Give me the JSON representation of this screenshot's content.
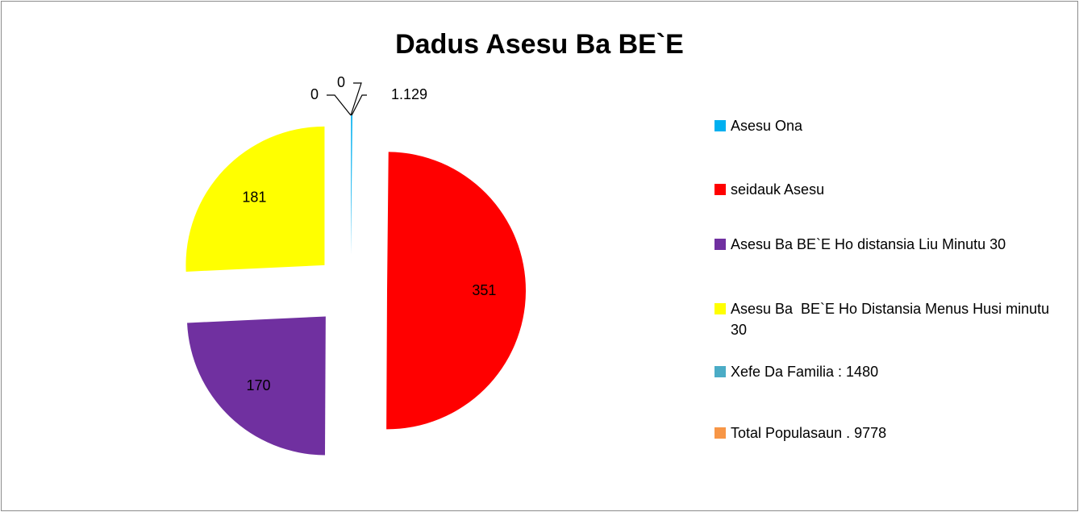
{
  "chart_data": {
    "type": "pie",
    "title": "Dadus Asesu Ba BE`E",
    "categories": [
      "Asesu Ona",
      "seidauk Asesu",
      "Asesu Ba BE`E Ho distansia Liu Minutu 30",
      "Asesu Ba  BE`E Ho Distansia Menus Husi minutu  30",
      "Xefe Da Familia : 1480",
      "Total Populasaun . 9778"
    ],
    "values": [
      1.129,
      351,
      170,
      181,
      0,
      0
    ],
    "colors": [
      "#00b0f0",
      "#ff0000",
      "#7030a0",
      "#ffff00",
      "#4bacc6",
      "#f79646"
    ],
    "legend": "right"
  }
}
